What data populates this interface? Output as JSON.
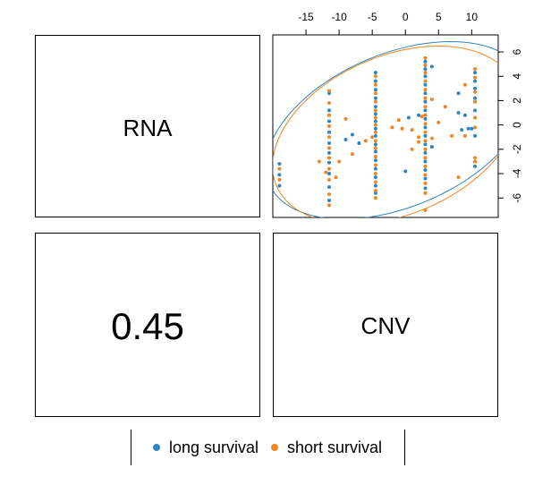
{
  "diagonal": {
    "rna_label": "RNA",
    "cnv_label": "CNV",
    "correlation": "0.45"
  },
  "colors": {
    "long": "#2E86C1",
    "short": "#F28522"
  },
  "legend": {
    "items": [
      {
        "label": "long survival",
        "color": "#2E86C1"
      },
      {
        "label": "short survival",
        "color": "#F28522"
      }
    ]
  },
  "chart_data": {
    "type": "scatter",
    "title": "",
    "xlabel": "",
    "ylabel": "",
    "xlim": [
      -20,
      14
    ],
    "ylim": [
      -7.6,
      7.4
    ],
    "x_ticks": [
      -15,
      -10,
      -5,
      0,
      5,
      10
    ],
    "y_ticks": [
      -6,
      -4,
      -2,
      0,
      2,
      4,
      6
    ],
    "grid": false,
    "legend_position": "bottom",
    "series": [
      {
        "name": "long survival",
        "color": "#2E86C1",
        "points": [
          [
            -19,
            -3.2
          ],
          [
            -19,
            -4.1
          ],
          [
            -19,
            -5.0
          ],
          [
            -11.5,
            2.6
          ],
          [
            -11.5,
            1.2
          ],
          [
            -11.5,
            0.3
          ],
          [
            -11.5,
            -0.6
          ],
          [
            -11.5,
            -1.5
          ],
          [
            -11.5,
            -2.3
          ],
          [
            -11.5,
            -3.1
          ],
          [
            -11.5,
            -4.0
          ],
          [
            -11.5,
            -5.1
          ],
          [
            -11.5,
            -6.2
          ],
          [
            -9,
            -1.2
          ],
          [
            -8,
            -0.8
          ],
          [
            -7,
            -1.5
          ],
          [
            -4.5,
            4.3
          ],
          [
            -4.5,
            3.6
          ],
          [
            -4.5,
            2.9
          ],
          [
            -4.5,
            2.2
          ],
          [
            -4.5,
            1.5
          ],
          [
            -4.5,
            0.9
          ],
          [
            -4.5,
            0.3
          ],
          [
            -4.5,
            -0.3
          ],
          [
            -4.5,
            -0.9
          ],
          [
            -4.5,
            -1.6
          ],
          [
            -4.5,
            -2.2
          ],
          [
            -4.5,
            -2.9
          ],
          [
            -4.5,
            -3.6
          ],
          [
            -4.5,
            -4.3
          ],
          [
            -4.5,
            -5.0
          ],
          [
            -4.5,
            -5.6
          ],
          [
            0,
            -3.8
          ],
          [
            0.5,
            0.6
          ],
          [
            2,
            0.8
          ],
          [
            3,
            5.2
          ],
          [
            3,
            4.6
          ],
          [
            3,
            4.0
          ],
          [
            3,
            3.3
          ],
          [
            3,
            2.6
          ],
          [
            3,
            1.9
          ],
          [
            3,
            1.2
          ],
          [
            3,
            0.5
          ],
          [
            3,
            -0.2
          ],
          [
            3,
            -0.9
          ],
          [
            3,
            -1.6
          ],
          [
            3,
            -2.3
          ],
          [
            3,
            -3.0
          ],
          [
            3,
            -3.7
          ],
          [
            3,
            -4.4
          ],
          [
            3,
            -5.2
          ],
          [
            4,
            4.8
          ],
          [
            4,
            -1.8
          ],
          [
            8,
            2.6
          ],
          [
            8,
            1.0
          ],
          [
            8.5,
            -0.4
          ],
          [
            9,
            0.8
          ],
          [
            9.5,
            -0.3
          ],
          [
            10,
            -0.3
          ],
          [
            10.5,
            4.3
          ],
          [
            10.5,
            3.6
          ],
          [
            10.5,
            3.0
          ],
          [
            10.5,
            2.2
          ],
          [
            10.5,
            1.2
          ],
          [
            10.5,
            -0.9
          ],
          [
            10.5,
            -3.4
          ]
        ]
      },
      {
        "name": "short survival",
        "color": "#F28522",
        "points": [
          [
            -19,
            -3.6
          ],
          [
            -19,
            -4.5
          ],
          [
            -13,
            -3.0
          ],
          [
            -12,
            -3.9
          ],
          [
            -11.5,
            2.8
          ],
          [
            -11.5,
            1.8
          ],
          [
            -11.5,
            0.8
          ],
          [
            -11.5,
            -0.1
          ],
          [
            -11.5,
            -1.0
          ],
          [
            -11.5,
            -1.9
          ],
          [
            -11.5,
            -2.7
          ],
          [
            -11.5,
            -3.6
          ],
          [
            -11.5,
            -4.5
          ],
          [
            -11.5,
            -5.7
          ],
          [
            -11.5,
            -6.6
          ],
          [
            -10.5,
            -4.3
          ],
          [
            -10,
            -3.0
          ],
          [
            -9,
            0.5
          ],
          [
            -8,
            -2.4
          ],
          [
            -6,
            -1.3
          ],
          [
            -5,
            -1.0
          ],
          [
            -4.5,
            4.0
          ],
          [
            -4.5,
            3.3
          ],
          [
            -4.5,
            2.6
          ],
          [
            -4.5,
            1.9
          ],
          [
            -4.5,
            1.2
          ],
          [
            -4.5,
            0.6
          ],
          [
            -4.5,
            0.0
          ],
          [
            -4.5,
            -0.6
          ],
          [
            -4.5,
            -1.3
          ],
          [
            -4.5,
            -1.9
          ],
          [
            -4.5,
            -2.6
          ],
          [
            -4.5,
            -3.3
          ],
          [
            -4.5,
            -4.0
          ],
          [
            -4.5,
            -4.7
          ],
          [
            -4.5,
            -5.4
          ],
          [
            -4.5,
            -6.0
          ],
          [
            -2,
            -0.2
          ],
          [
            -1,
            0.4
          ],
          [
            -0.5,
            -0.3
          ],
          [
            1,
            -0.4
          ],
          [
            1,
            -2.0
          ],
          [
            2,
            -1.4
          ],
          [
            2,
            -1.0
          ],
          [
            2.5,
            0.7
          ],
          [
            3,
            5.5
          ],
          [
            3,
            4.9
          ],
          [
            3,
            4.3
          ],
          [
            3,
            3.6
          ],
          [
            3,
            2.9
          ],
          [
            3,
            2.2
          ],
          [
            3,
            1.5
          ],
          [
            3,
            0.8
          ],
          [
            3,
            0.1
          ],
          [
            3,
            -0.6
          ],
          [
            3,
            -1.3
          ],
          [
            3,
            -2.0
          ],
          [
            3,
            -2.7
          ],
          [
            3,
            -3.4
          ],
          [
            3,
            -4.1
          ],
          [
            3,
            -4.8
          ],
          [
            3,
            -5.6
          ],
          [
            3,
            -7.0
          ],
          [
            4,
            2.1
          ],
          [
            4,
            -1.1
          ],
          [
            5,
            0.2
          ],
          [
            6,
            1.5
          ],
          [
            7,
            -0.9
          ],
          [
            8,
            -4.3
          ],
          [
            9,
            3.3
          ],
          [
            9,
            -0.9
          ],
          [
            10.5,
            4.6
          ],
          [
            10.5,
            3.9
          ],
          [
            10.5,
            2.7
          ],
          [
            10.5,
            1.9
          ],
          [
            10.5,
            0.6
          ],
          [
            10.5,
            -0.2
          ],
          [
            10.5,
            -2.7
          ],
          [
            10.5,
            -3.0
          ]
        ]
      }
    ]
  }
}
